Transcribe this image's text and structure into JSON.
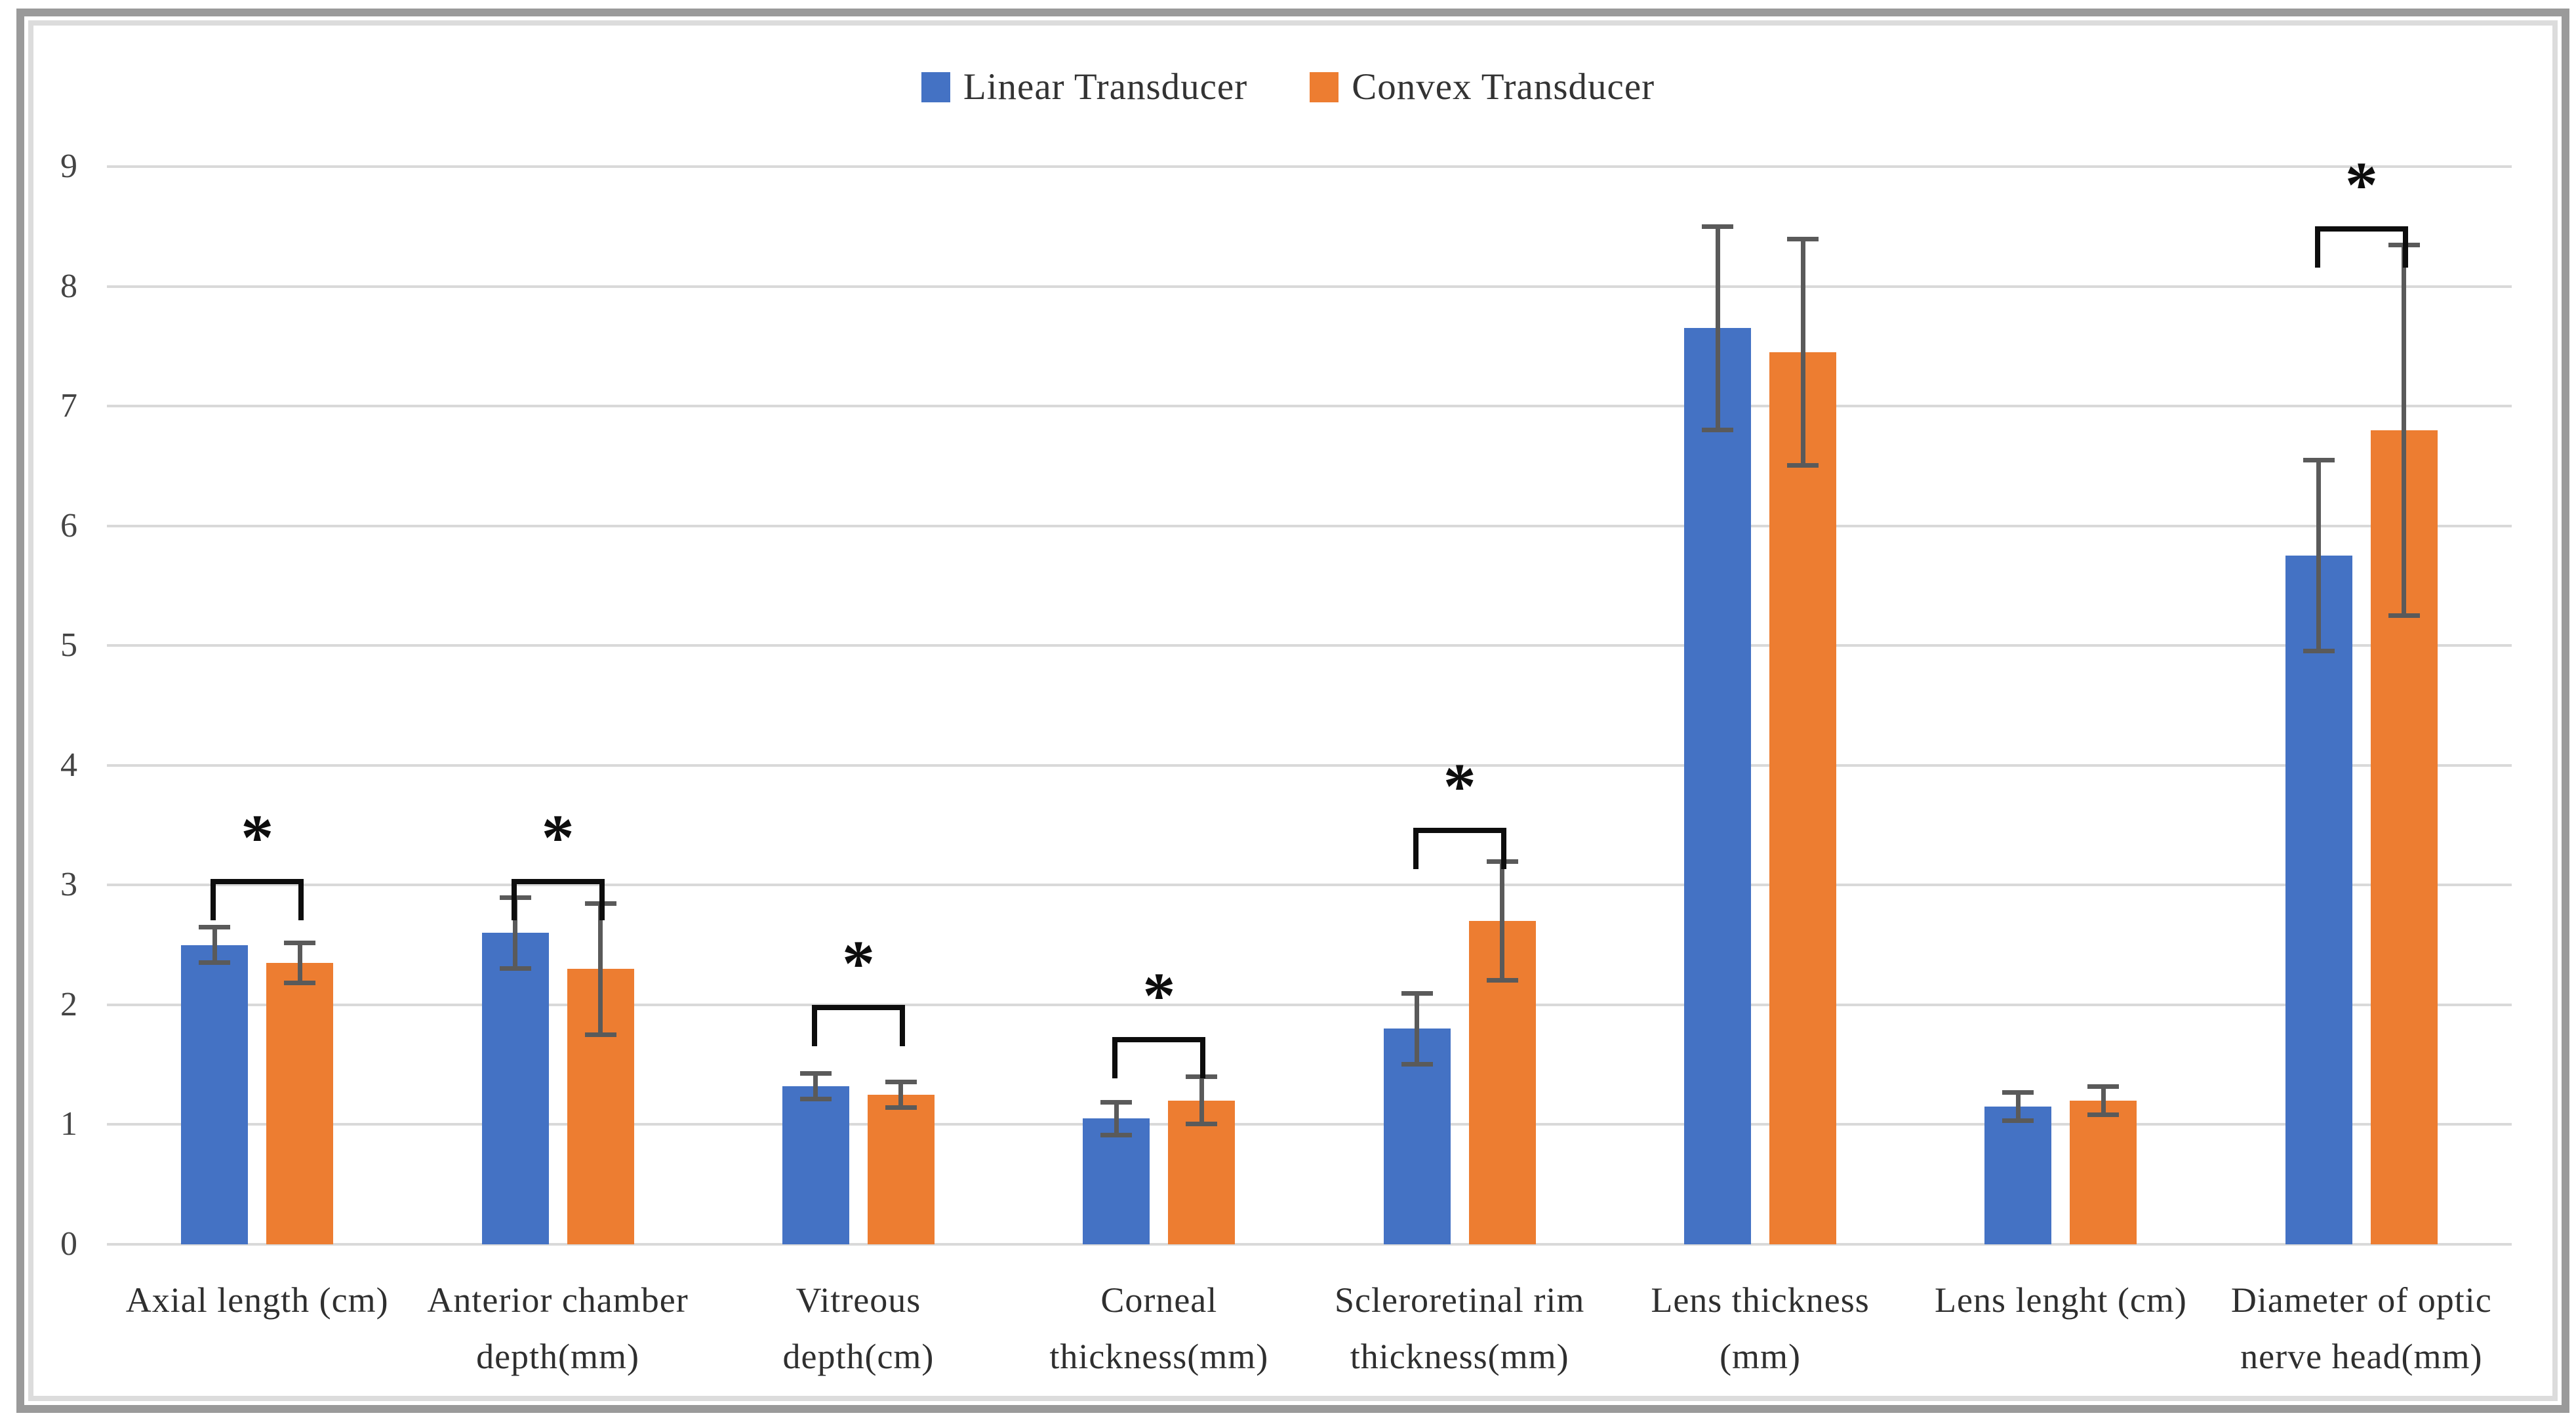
{
  "chart_data": {
    "type": "bar",
    "title": "",
    "xlabel": "",
    "ylabel": "",
    "ylim": [
      0,
      9
    ],
    "y_ticks": [
      "0",
      "1",
      "2",
      "3",
      "4",
      "5",
      "6",
      "7",
      "8",
      "9"
    ],
    "grid": true,
    "legend_position": "top",
    "categories": [
      "Axial length (cm)",
      "Anterior chamber depth(mm)",
      "Vitreous depth(cm)",
      "Corneal thickness(mm)",
      "Scleroretinal rim thickness(mm)",
      "Lens thickness (mm)",
      "Lens lenght (cm)",
      "Diameter of optic nerve head(mm)"
    ],
    "categories_wrap": [
      [
        "Axial length (cm)"
      ],
      [
        "Anterior chamber",
        "depth(mm)"
      ],
      [
        "Vitreous",
        "depth(cm)"
      ],
      [
        "Corneal",
        "thickness(mm)"
      ],
      [
        "Scleroretinal rim",
        "thickness(mm)"
      ],
      [
        "Lens thickness",
        "(mm)"
      ],
      [
        "Lens lenght (cm)"
      ],
      [
        "Diameter of optic",
        "nerve head(mm)"
      ]
    ],
    "series": [
      {
        "name": "Linear Transducer",
        "color": "#4472C4",
        "values": [
          2.5,
          2.6,
          1.32,
          1.05,
          1.8,
          7.65,
          1.15,
          5.75
        ],
        "errors": [
          0.15,
          0.3,
          0.11,
          0.14,
          0.3,
          0.85,
          0.12,
          0.8
        ]
      },
      {
        "name": "Convex Transducer",
        "color": "#ED7D31",
        "values": [
          2.35,
          2.3,
          1.25,
          1.2,
          2.7,
          7.45,
          1.2,
          6.8
        ],
        "errors": [
          0.17,
          0.55,
          0.11,
          0.2,
          0.5,
          0.95,
          0.12,
          1.55
        ]
      }
    ],
    "significance": [
      {
        "category_index": 0,
        "bracket_y": 3.05,
        "label": "*"
      },
      {
        "category_index": 1,
        "bracket_y": 3.05,
        "label": "*"
      },
      {
        "category_index": 2,
        "bracket_y": 2.0,
        "label": "*"
      },
      {
        "category_index": 3,
        "bracket_y": 1.73,
        "label": "*"
      },
      {
        "category_index": 4,
        "bracket_y": 3.48,
        "label": "*"
      },
      {
        "category_index": 7,
        "bracket_y": 8.5,
        "label": "*"
      }
    ],
    "colors": {
      "gridline": "#d9d9d9",
      "error_bar": "#5a5a5a",
      "bracket": "#0d0d0d",
      "axis_text": "#444444",
      "category_text": "#2f2f2f"
    }
  }
}
